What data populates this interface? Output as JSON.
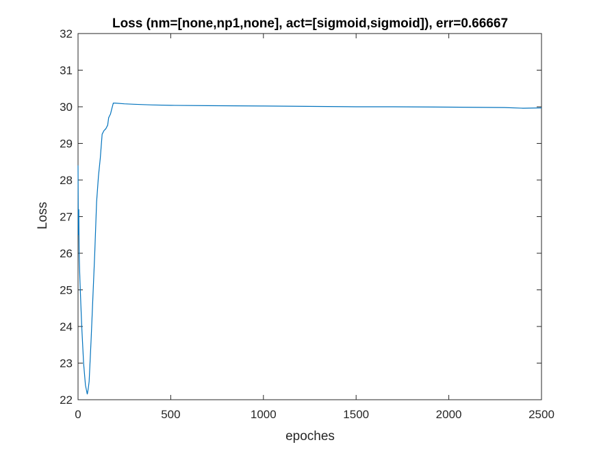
{
  "chart_data": {
    "type": "line",
    "title": "Loss (nm=[none,np1,none], act=[sigmoid,sigmoid]), err=0.66667",
    "xlabel": "epoches",
    "ylabel": "Loss",
    "xlim": [
      0,
      2500
    ],
    "ylim": [
      22,
      32
    ],
    "xticks": [
      0,
      500,
      1000,
      1500,
      2000,
      2500
    ],
    "yticks": [
      22,
      23,
      24,
      25,
      26,
      27,
      28,
      29,
      30,
      31,
      32
    ],
    "grid": false,
    "color": "#0072BD",
    "series": [
      {
        "x": [
          0,
          2,
          4,
          6,
          10,
          15,
          20,
          30,
          40,
          50,
          55,
          60,
          70,
          80,
          90,
          100,
          110,
          120,
          130,
          140,
          150,
          160,
          165,
          170,
          175,
          180,
          190,
          200,
          250,
          300,
          400,
          500,
          700,
          1000,
          1500,
          1700,
          2000,
          2300,
          2400,
          2500
        ],
        "y": [
          28.4,
          26.5,
          27.2,
          26.0,
          25.3,
          24.6,
          24.0,
          23.0,
          22.4,
          22.15,
          22.3,
          22.5,
          23.6,
          24.8,
          26.0,
          27.4,
          28.1,
          28.6,
          29.25,
          29.35,
          29.4,
          29.5,
          29.7,
          29.75,
          29.8,
          29.9,
          30.1,
          30.1,
          30.08,
          30.07,
          30.05,
          30.04,
          30.03,
          30.02,
          30.0,
          30.0,
          29.99,
          29.98,
          29.96,
          29.97
        ]
      }
    ]
  }
}
